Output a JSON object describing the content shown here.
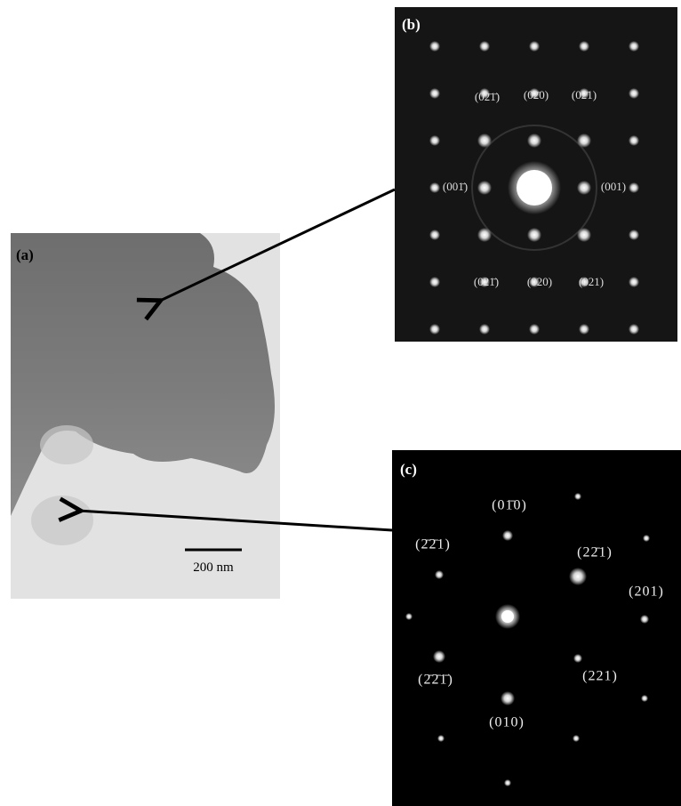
{
  "panel_a": {
    "label": "(a)",
    "scale_bar": "200 nm"
  },
  "panel_b": {
    "label": "(b)",
    "spot_labels": [
      "(02̄1̄)",
      "(02̄0)",
      "(02̄1)",
      "(001̄)",
      "(001)",
      "(021̄)",
      "(020)",
      "(021)"
    ]
  },
  "panel_c": {
    "label": "(c)",
    "spot_labels": [
      "(01̄0)",
      "(2̄2̄1)",
      "(22̄1)",
      "(201)",
      "(2̄2̄1̄)",
      "(221)",
      "(010)"
    ]
  }
}
